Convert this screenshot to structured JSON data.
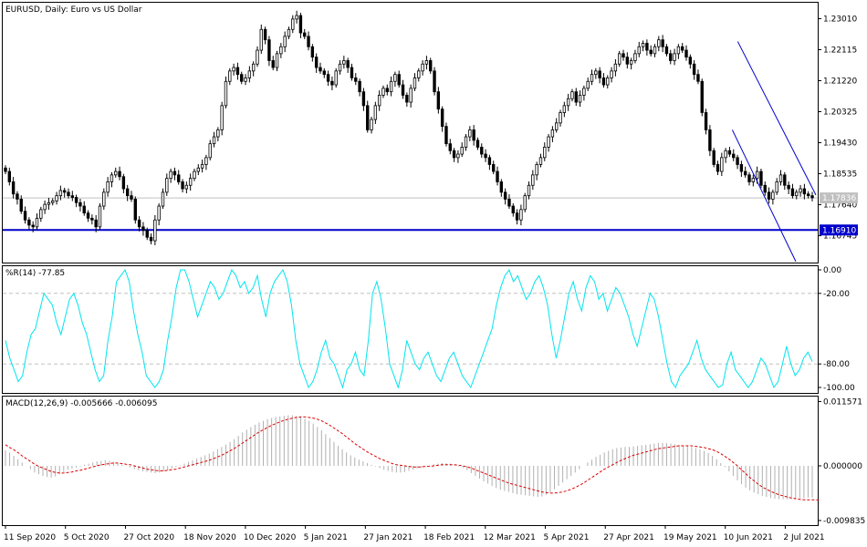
{
  "chart_data": [
    {
      "type": "candlestick",
      "title": "EURUSD, Daily: Euro vs US Dollar",
      "ylim": [
        1.1597,
        1.2347
      ],
      "yticks": [
        "1.23010",
        "1.22115",
        "1.21220",
        "1.20325",
        "1.19430",
        "1.18535",
        "1.17640",
        "1.16745"
      ],
      "yticks_values": [
        1.2301,
        1.22115,
        1.2122,
        1.20325,
        1.1943,
        1.18535,
        1.1764,
        1.16745
      ],
      "current_price": 1.17836,
      "current_price_label": "1.17836",
      "support_level": 1.1691,
      "support_label": "1.16910",
      "colors": {
        "candle": "#000000",
        "support": "#0000cc",
        "channel": "#0000cc",
        "price_line": "#c0c0c0"
      },
      "closes": [
        1.186,
        1.183,
        1.1795,
        1.178,
        1.1745,
        1.172,
        1.1705,
        1.17,
        1.1725,
        1.175,
        1.1765,
        1.177,
        1.1775,
        1.179,
        1.1805,
        1.18,
        1.179,
        1.1785,
        1.177,
        1.176,
        1.174,
        1.1725,
        1.172,
        1.17,
        1.176,
        1.18,
        1.183,
        1.185,
        1.186,
        1.1845,
        1.181,
        1.179,
        1.178,
        1.172,
        1.17,
        1.169,
        1.167,
        1.166,
        1.172,
        1.176,
        1.18,
        1.184,
        1.186,
        1.185,
        1.183,
        1.181,
        1.182,
        1.184,
        1.186,
        1.187,
        1.188,
        1.19,
        1.194,
        1.196,
        1.198,
        1.205,
        1.212,
        1.215,
        1.216,
        1.214,
        1.212,
        1.213,
        1.215,
        1.217,
        1.221,
        1.227,
        1.224,
        1.218,
        1.216,
        1.22,
        1.222,
        1.225,
        1.227,
        1.23,
        1.231,
        1.226,
        1.225,
        1.222,
        1.219,
        1.216,
        1.215,
        1.214,
        1.212,
        1.211,
        1.215,
        1.217,
        1.218,
        1.216,
        1.213,
        1.212,
        1.209,
        1.205,
        1.198,
        1.201,
        1.205,
        1.208,
        1.21,
        1.209,
        1.212,
        1.214,
        1.211,
        1.208,
        1.206,
        1.21,
        1.213,
        1.215,
        1.217,
        1.218,
        1.215,
        1.209,
        1.204,
        1.199,
        1.194,
        1.192,
        1.19,
        1.191,
        1.193,
        1.196,
        1.198,
        1.195,
        1.193,
        1.191,
        1.19,
        1.188,
        1.186,
        1.183,
        1.18,
        1.178,
        1.176,
        1.174,
        1.172,
        1.175,
        1.179,
        1.182,
        1.185,
        1.188,
        1.19,
        1.193,
        1.196,
        1.198,
        1.2,
        1.203,
        1.205,
        1.207,
        1.209,
        1.206,
        1.208,
        1.21,
        1.212,
        1.214,
        1.215,
        1.213,
        1.211,
        1.213,
        1.215,
        1.217,
        1.22,
        1.219,
        1.217,
        1.218,
        1.22,
        1.222,
        1.223,
        1.221,
        1.22,
        1.222,
        1.224,
        1.222,
        1.22,
        1.218,
        1.22,
        1.222,
        1.221,
        1.219,
        1.217,
        1.214,
        1.212,
        1.203,
        1.198,
        1.192,
        1.188,
        1.186,
        1.19,
        1.192,
        1.191,
        1.19,
        1.188,
        1.186,
        1.185,
        1.183,
        1.184,
        1.186,
        1.182,
        1.18,
        1.178,
        1.18,
        1.183,
        1.185,
        1.182,
        1.181,
        1.179,
        1.18,
        1.181,
        1.1795,
        1.179,
        1.1784
      ],
      "date_labels": [
        "11 Sep 2020",
        "5 Oct 2020",
        "27 Oct 2020",
        "18 Nov 2020",
        "10 Dec 2020",
        "5 Jan 2021",
        "27 Jan 2021",
        "18 Feb 2021",
        "12 Mar 2021",
        "5 Apr 2021",
        "27 Apr 2021",
        "19 May 2021",
        "10 Jun 2021",
        "2 Jul 2021"
      ]
    },
    {
      "type": "line",
      "title": "%R(14) -77.85",
      "ylim": [
        -100,
        0
      ],
      "yticks": [
        "0.00",
        "-20.00",
        "-80.00",
        "-100.00"
      ],
      "yticks_values": [
        0,
        -20,
        -80,
        -100
      ],
      "levels": [
        -20,
        -80
      ],
      "colors": {
        "line": "#00e5ee",
        "level": "#c0c0c0"
      },
      "values": [
        -60,
        -75,
        -85,
        -95,
        -90,
        -70,
        -55,
        -50,
        -35,
        -20,
        -25,
        -30,
        -45,
        -55,
        -40,
        -25,
        -20,
        -30,
        -45,
        -55,
        -70,
        -85,
        -95,
        -90,
        -60,
        -40,
        -10,
        -5,
        0,
        -10,
        -35,
        -55,
        -70,
        -90,
        -95,
        -100,
        -95,
        -85,
        -60,
        -40,
        -15,
        0,
        0,
        -10,
        -25,
        -40,
        -30,
        -20,
        -10,
        -15,
        -25,
        -20,
        -10,
        0,
        -5,
        -15,
        -10,
        -20,
        -15,
        -5,
        -25,
        -40,
        -20,
        -10,
        -5,
        0,
        -10,
        -30,
        -60,
        -80,
        -90,
        -100,
        -95,
        -85,
        -70,
        -60,
        -75,
        -80,
        -90,
        -100,
        -85,
        -80,
        -70,
        -85,
        -90,
        -60,
        -20,
        -10,
        -25,
        -50,
        -80,
        -90,
        -100,
        -85,
        -60,
        -70,
        -80,
        -85,
        -75,
        -70,
        -80,
        -90,
        -95,
        -85,
        -75,
        -70,
        -80,
        -90,
        -95,
        -100,
        -90,
        -80,
        -70,
        -60,
        -50,
        -30,
        -15,
        -5,
        0,
        -10,
        -5,
        -15,
        -25,
        -20,
        -10,
        -5,
        -15,
        -30,
        -55,
        -75,
        -60,
        -40,
        -20,
        -10,
        -25,
        -35,
        -15,
        -5,
        -10,
        -25,
        -20,
        -35,
        -25,
        -15,
        -20,
        -30,
        -40,
        -55,
        -65,
        -50,
        -35,
        -20,
        -25,
        -40,
        -60,
        -80,
        -95,
        -100,
        -90,
        -85,
        -80,
        -70,
        -60,
        -75,
        -85,
        -90,
        -95,
        -100,
        -98,
        -80,
        -70,
        -85,
        -90,
        -95,
        -100,
        -95,
        -85,
        -75,
        -80,
        -90,
        -100,
        -95,
        -80,
        -65,
        -80,
        -90,
        -85,
        -75,
        -70,
        -78
      ],
      "current_value": -77.85
    },
    {
      "type": "bar+line",
      "title": "MACD(12,26,9) -0.005666 -0.006095",
      "ylim": [
        -0.0105,
        0.0123
      ],
      "yticks": [
        "0.011571",
        "0.000000",
        "-0.009835"
      ],
      "yticks_values": [
        0.011571,
        0,
        -0.009835
      ],
      "colors": {
        "histogram": "#b0b0b0",
        "signal": "#dd0000"
      },
      "macd": [
        0.0028,
        0.0024,
        0.0018,
        0.0012,
        0.0006,
        0.0,
        -0.0006,
        -0.0012,
        -0.0015,
        -0.0018,
        -0.002,
        -0.0021,
        -0.0019,
        -0.0015,
        -0.0011,
        -0.0007,
        -0.0005,
        -0.0003,
        -0.0001,
        0.0002,
        0.0004,
        0.0006,
        0.0008,
        0.0009,
        0.001,
        0.0009,
        0.0007,
        0.0005,
        0.0002,
        0.0,
        -0.0003,
        -0.0006,
        -0.0008,
        -0.001,
        -0.0011,
        -0.0012,
        -0.0013,
        -0.0012,
        -0.001,
        -0.0008,
        -0.0005,
        -0.0002,
        0.0001,
        0.0004,
        0.0007,
        0.001,
        0.0013,
        0.0016,
        0.0019,
        0.0022,
        0.0026,
        0.003,
        0.0034,
        0.0038,
        0.0043,
        0.0048,
        0.0054,
        0.006,
        0.0065,
        0.007,
        0.0074,
        0.0078,
        0.0081,
        0.0084,
        0.0086,
        0.0088,
        0.0089,
        0.009,
        0.0091,
        0.0091,
        0.009,
        0.0088,
        0.0085,
        0.0081,
        0.0076,
        0.007,
        0.0064,
        0.0057,
        0.005,
        0.0043,
        0.0036,
        0.003,
        0.0024,
        0.0019,
        0.0015,
        0.0011,
        0.0008,
        0.0005,
        0.0002,
        -0.0001,
        -0.0004,
        -0.0007,
        -0.0009,
        -0.0011,
        -0.0012,
        -0.0012,
        -0.0011,
        -0.0009,
        -0.0007,
        -0.0005,
        -0.0003,
        -0.0001,
        0.0001,
        0.0003,
        0.0004,
        0.0005,
        0.0005,
        0.0004,
        0.0002,
        -0.0001,
        -0.0004,
        -0.0008,
        -0.0013,
        -0.0018,
        -0.0023,
        -0.0028,
        -0.0032,
        -0.0036,
        -0.004,
        -0.0043,
        -0.0045,
        -0.0047,
        -0.0049,
        -0.0051,
        -0.0052,
        -0.0053,
        -0.0054,
        -0.0055,
        -0.0056,
        -0.0055,
        -0.0052,
        -0.0048,
        -0.0042,
        -0.0036,
        -0.003,
        -0.0024,
        -0.0018,
        -0.0012,
        -0.0006,
        0.0,
        0.0006,
        0.0011,
        0.0016,
        0.002,
        0.0024,
        0.0027,
        0.003,
        0.0032,
        0.0033,
        0.0034,
        0.0034,
        0.0035,
        0.0036,
        0.0037,
        0.0038,
        0.0039,
        0.004,
        0.0041,
        0.0041,
        0.0041,
        0.004,
        0.0039,
        0.0038,
        0.0037,
        0.0036,
        0.0034,
        0.0032,
        0.003,
        0.0027,
        0.0023,
        0.0018,
        0.0012,
        0.0005,
        -0.0002,
        -0.001,
        -0.0018,
        -0.0026,
        -0.0033,
        -0.0039,
        -0.0044,
        -0.0048,
        -0.0051,
        -0.0054,
        -0.0056,
        -0.0058,
        -0.0059,
        -0.006,
        -0.006,
        -0.006,
        -0.006,
        -0.0059,
        -0.0058,
        -0.0058,
        -0.0057,
        -0.0057
      ],
      "signal": [
        0.0038,
        0.0033,
        0.0029,
        0.0024,
        0.0018,
        0.0013,
        0.0008,
        0.0003,
        -0.0001,
        -0.0004,
        -0.0007,
        -0.001,
        -0.0012,
        -0.0013,
        -0.0013,
        -0.0012,
        -0.0011,
        -0.0009,
        -0.0008,
        -0.0006,
        -0.0004,
        -0.0002,
        0.0,
        0.0002,
        0.0003,
        0.0004,
        0.0005,
        0.0005,
        0.0004,
        0.0003,
        0.0002,
        0.0,
        -0.0002,
        -0.0004,
        -0.0006,
        -0.0007,
        -0.0008,
        -0.0009,
        -0.0009,
        -0.0008,
        -0.0007,
        -0.0006,
        -0.0004,
        -0.0002,
        0.0,
        0.0002,
        0.0004,
        0.0006,
        0.0008,
        0.001,
        0.0013,
        0.0016,
        0.0019,
        0.0023,
        0.0027,
        0.0031,
        0.0036,
        0.0041,
        0.0046,
        0.0051,
        0.0056,
        0.0061,
        0.0065,
        0.0069,
        0.0073,
        0.0076,
        0.0079,
        0.0082,
        0.0084,
        0.0086,
        0.0087,
        0.0088,
        0.0088,
        0.0087,
        0.0086,
        0.0084,
        0.0081,
        0.0077,
        0.0073,
        0.0068,
        0.0063,
        0.0058,
        0.0052,
        0.0046,
        0.004,
        0.0035,
        0.003,
        0.0025,
        0.0021,
        0.0017,
        0.0013,
        0.001,
        0.0007,
        0.0004,
        0.0002,
        0.0001,
        0.0,
        -0.0001,
        -0.0002,
        -0.0002,
        -0.0002,
        -0.0001,
        -0.0001,
        0.0,
        0.0001,
        0.0002,
        0.0002,
        0.0002,
        0.0002,
        0.0001,
        0.0,
        -0.0002,
        -0.0004,
        -0.0007,
        -0.001,
        -0.0013,
        -0.0016,
        -0.0019,
        -0.0022,
        -0.0025,
        -0.0028,
        -0.0031,
        -0.0033,
        -0.0035,
        -0.0037,
        -0.0039,
        -0.0041,
        -0.0043,
        -0.0045,
        -0.0047,
        -0.0048,
        -0.0049,
        -0.0049,
        -0.0048,
        -0.0047,
        -0.0045,
        -0.0042,
        -0.0039,
        -0.0035,
        -0.0031,
        -0.0026,
        -0.0021,
        -0.0016,
        -0.0011,
        -0.0006,
        -0.0002,
        0.0002,
        0.0006,
        0.001,
        0.0013,
        0.0016,
        0.0019,
        0.0021,
        0.0023,
        0.0025,
        0.0027,
        0.0029,
        0.0031,
        0.0032,
        0.0033,
        0.0034,
        0.0035,
        0.0036,
        0.0036,
        0.0036,
        0.0036,
        0.0035,
        0.0034,
        0.0033,
        0.0031,
        0.0029,
        0.0026,
        0.0022,
        0.0017,
        0.0012,
        0.0006,
        0.0,
        -0.0007,
        -0.0014,
        -0.0021,
        -0.0027,
        -0.0033,
        -0.0038,
        -0.0042,
        -0.0046,
        -0.0049,
        -0.0052,
        -0.0054,
        -0.0056,
        -0.0058,
        -0.0059,
        -0.006,
        -0.0061,
        -0.0061,
        -0.0061,
        -0.0061,
        -0.0061
      ]
    }
  ]
}
